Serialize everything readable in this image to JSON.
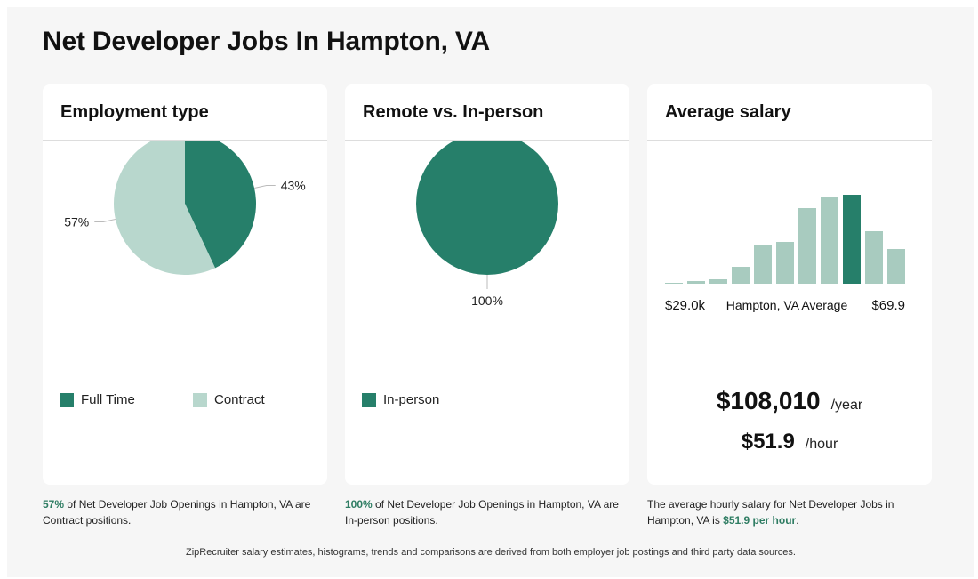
{
  "page_title": "Net Developer Jobs In Hampton, VA",
  "colors": {
    "dark_green": "#267f6a",
    "light_green": "#b8d7cd",
    "hist_light": "#a8cbbf",
    "accent_text": "#2f7d63"
  },
  "chart_data": [
    {
      "type": "pie",
      "title": "Employment type",
      "slices": [
        {
          "name": "Full Time",
          "value": 43,
          "label": "43%",
          "color": "#267f6a"
        },
        {
          "name": "Contract",
          "value": 57,
          "label": "57%",
          "color": "#b8d7cd"
        }
      ],
      "legend": "bottom"
    },
    {
      "type": "pie",
      "title": "Remote vs. In-person",
      "slices": [
        {
          "name": "In-person",
          "value": 100,
          "label": "100%",
          "color": "#267f6a"
        }
      ],
      "legend": "bottom"
    },
    {
      "type": "bar",
      "title": "Average salary",
      "values": [
        1,
        3,
        5,
        19,
        43,
        47,
        85,
        97,
        100,
        59,
        39
      ],
      "highlight_index": 8,
      "ylim": [
        0,
        100
      ],
      "xlabel_left": "$29.0k",
      "xlabel_center": "Hampton, VA Average",
      "xlabel_right": "$69.9"
    }
  ],
  "salary": {
    "yearly": "$108,010",
    "yearly_unit": "/year",
    "hourly": "$51.9",
    "hourly_unit": "/hour"
  },
  "captions": {
    "employment": {
      "highlight": "57%",
      "text": " of Net Developer Job Openings in Hampton, VA are Contract positions."
    },
    "remote": {
      "highlight": "100%",
      "text": " of Net Developer Job Openings in Hampton, VA are In-person positions."
    },
    "salary": {
      "text": "The average hourly salary for Net Developer Jobs in Hampton, VA is ",
      "highlight": "$51.9 per hour",
      "end": "."
    }
  },
  "footnote": "ZipRecruiter salary estimates, histograms, trends and comparisons are derived from both employer job postings and third party data sources."
}
